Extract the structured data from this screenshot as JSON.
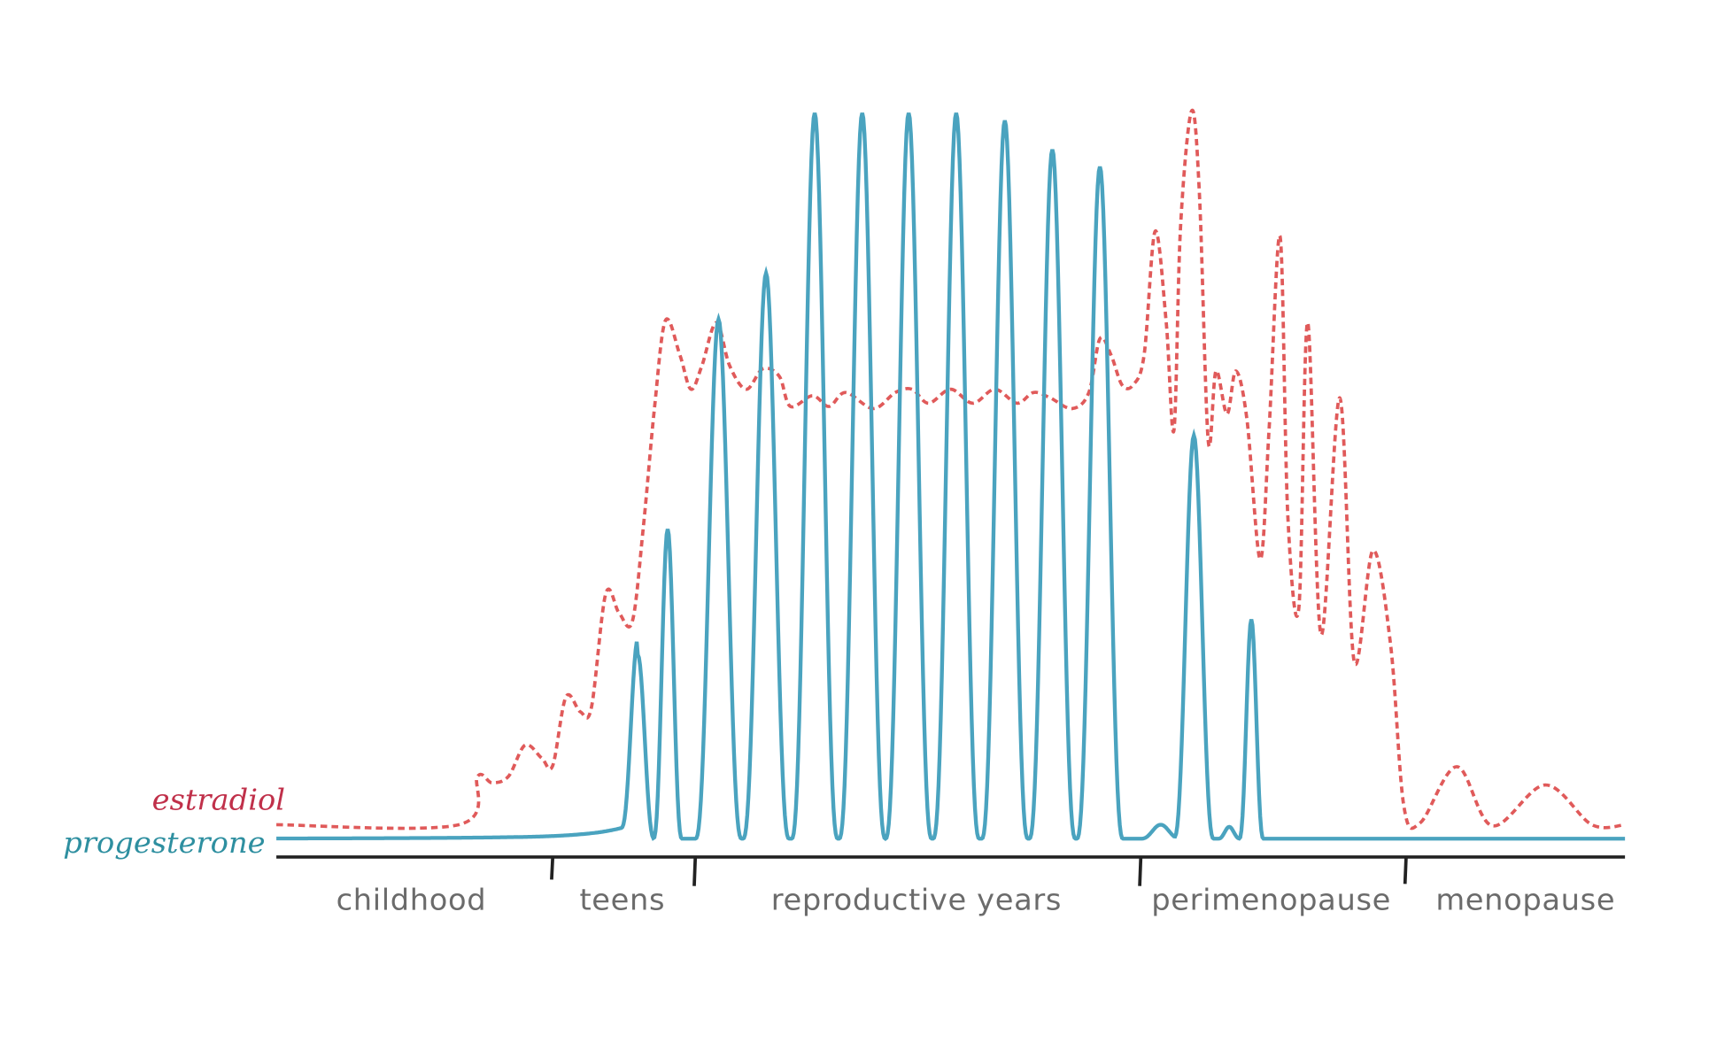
{
  "legend": {
    "estradiol": "estradiol",
    "progesterone": "progesterone"
  },
  "stages": [
    "childhood",
    "teens",
    "reproductive years",
    "perimenopause",
    "menopause"
  ]
}
